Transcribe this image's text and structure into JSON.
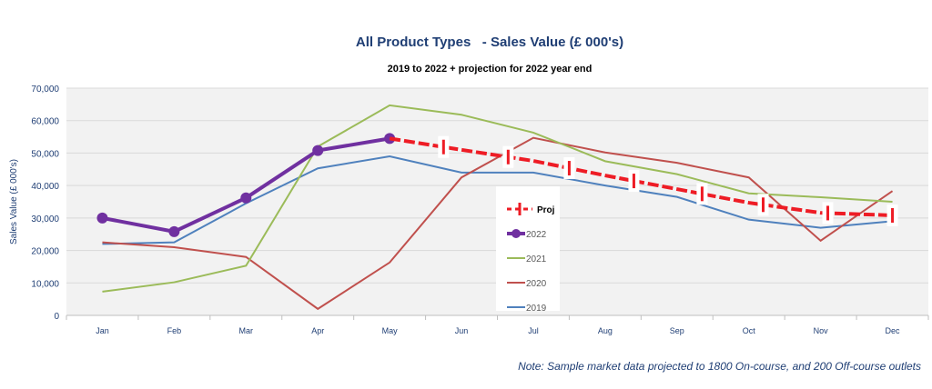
{
  "chart_data": {
    "type": "line",
    "title": "All Product Types   - Sales Value (£ 000's)",
    "subtitle": "2019 to 2022 + projection for 2022 year end",
    "xlabel": "",
    "ylabel": "Sales Value (£ 000's)",
    "ylim": [
      0,
      70000
    ],
    "yticks": [
      "0",
      "10,000",
      "20,000",
      "30,000",
      "40,000",
      "50,000",
      "60,000",
      "70,000"
    ],
    "categories": [
      "Jan",
      "Feb",
      "Mar",
      "Apr",
      "May",
      "Jun",
      "Jul",
      "Aug",
      "Sep",
      "Oct",
      "Nov",
      "Dec"
    ],
    "grid": true,
    "legend_placement": "center",
    "series": [
      {
        "name": "Proj",
        "color": "#ee1c25",
        "values": [
          null,
          null,
          null,
          null,
          54500,
          51000,
          47600,
          43100,
          38900,
          34700,
          31600,
          30800
        ]
      },
      {
        "name": "2022",
        "color": "#7030a0",
        "values": [
          30000,
          25800,
          36200,
          50800,
          54500,
          null,
          null,
          null,
          null,
          null,
          null,
          null
        ]
      },
      {
        "name": "2021",
        "color": "#9bbb59",
        "values": [
          7300,
          10200,
          15300,
          52000,
          64700,
          61800,
          56300,
          47500,
          43500,
          37600,
          36400,
          35000
        ]
      },
      {
        "name": "2020",
        "color": "#c0504d",
        "values": [
          22500,
          21000,
          18000,
          2000,
          16300,
          42500,
          54700,
          50200,
          47000,
          42500,
          23000,
          38300
        ]
      },
      {
        "name": "2019",
        "color": "#4f81bd",
        "values": [
          22000,
          22500,
          34500,
          45300,
          49000,
          44000,
          44000,
          40000,
          36500,
          29500,
          27000,
          29000
        ]
      }
    ],
    "note": "Note: Sample market data projected to 1800 On-course, and 200 Off-course outlets"
  }
}
